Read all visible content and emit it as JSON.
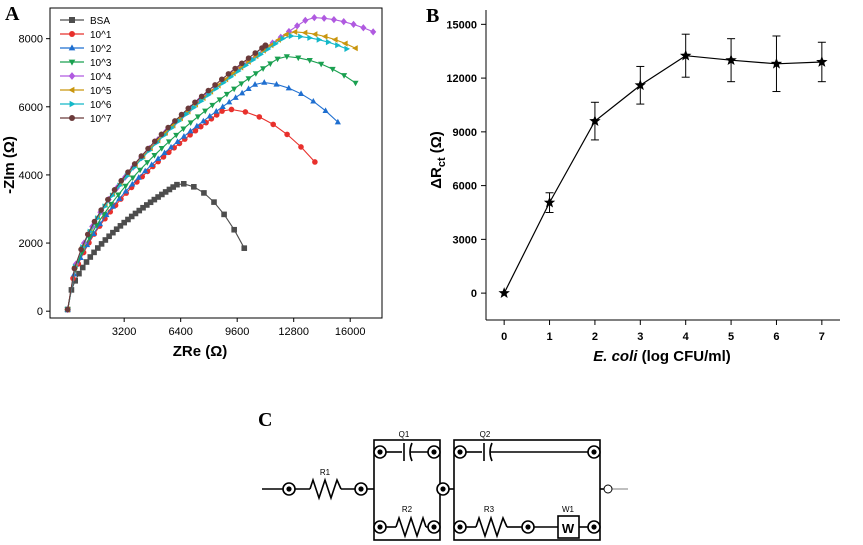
{
  "panels": {
    "a": "A",
    "b": "B",
    "c": "C"
  },
  "chart_data": [
    {
      "type": "line",
      "panel": "A",
      "xlabel": "ZRe (Ω)",
      "ylabel": "-ZIm (Ω)",
      "xlim": [
        -1000,
        17800
      ],
      "ylim": [
        -200,
        8900
      ],
      "xticks": [
        3200,
        6400,
        9600,
        12800,
        16000
      ],
      "yticks": [
        0,
        2000,
        4000,
        6000,
        8000
      ],
      "legend_position": "top-left",
      "series": [
        {
          "name": "BSA",
          "color": "#4d4d4d",
          "marker": "square",
          "peak_x": 6300,
          "peak_y": 3750,
          "end_x": 10000,
          "end_y": 1850,
          "s": 0.5
        },
        {
          "name": "10^1",
          "color": "#e8302c",
          "marker": "circle",
          "peak_x": 8900,
          "peak_y": 5930,
          "end_x": 14000,
          "end_y": 4380,
          "s": 0.48
        },
        {
          "name": "10^2",
          "color": "#1f6fd0",
          "marker": "triangle-up",
          "peak_x": 10800,
          "peak_y": 6720,
          "end_x": 15300,
          "end_y": 5550,
          "s": 0.46
        },
        {
          "name": "10^3",
          "color": "#1aa050",
          "marker": "triangle-down",
          "peak_x": 12100,
          "peak_y": 7480,
          "end_x": 16300,
          "end_y": 6700,
          "s": 0.45
        },
        {
          "name": "10^4",
          "color": "#b05ae0",
          "marker": "diamond",
          "peak_x": 13700,
          "peak_y": 8620,
          "end_x": 17300,
          "end_y": 8200,
          "s": 0.44
        },
        {
          "name": "10^5",
          "color": "#c9960e",
          "marker": "triangle-left",
          "peak_x": 12600,
          "peak_y": 8200,
          "end_x": 16300,
          "end_y": 7720,
          "s": 0.45
        },
        {
          "name": "10^6",
          "color": "#14b8c8",
          "marker": "triangle-right",
          "peak_x": 12400,
          "peak_y": 8080,
          "end_x": 15800,
          "end_y": 7700,
          "s": 0.45
        },
        {
          "name": "10^7",
          "color": "#6b3a3a",
          "marker": "circle",
          "peak_x": 11200,
          "peak_y": 7800,
          "end_x": 11200,
          "end_y": 7800,
          "s": 0.45
        }
      ]
    },
    {
      "type": "line",
      "panel": "B",
      "ylabel_main": "ΔR",
      "ylabel_sub": "ct",
      "ylabel_unit": " (Ω)",
      "xlabel_italic": "E. coli",
      "xlabel_rest": " (log CFU/ml)",
      "xlim": [
        -0.4,
        7.4
      ],
      "ylim": [
        -1500,
        15800
      ],
      "xticks": [
        0,
        1,
        2,
        3,
        4,
        5,
        6,
        7
      ],
      "yticks": [
        0,
        3000,
        6000,
        9000,
        12000,
        15000
      ],
      "x": [
        0,
        1,
        2,
        3,
        4,
        5,
        6,
        7
      ],
      "y": [
        0,
        5050,
        9600,
        11600,
        13250,
        13000,
        12800,
        12900
      ],
      "err": [
        0,
        550,
        1050,
        1050,
        1200,
        1200,
        1550,
        1100
      ],
      "marker": "star"
    }
  ],
  "circuit": {
    "q1": "Q1",
    "q2": "Q2",
    "r1": "R1",
    "r2": "R2",
    "r3": "R3",
    "w1": "W1",
    "w_symbol": "W"
  }
}
